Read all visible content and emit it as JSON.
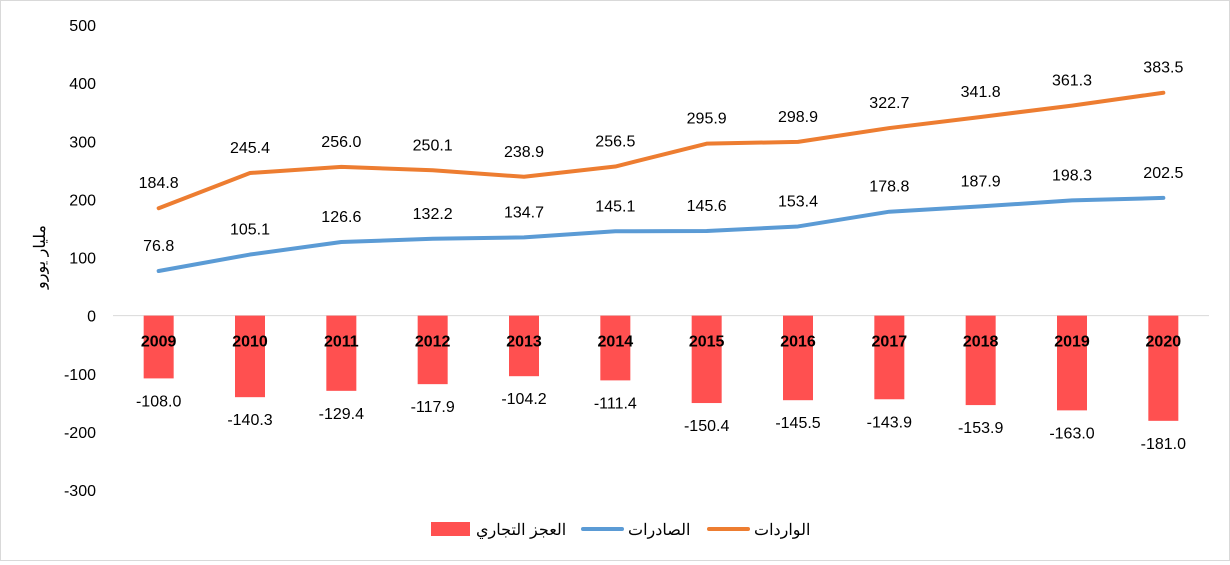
{
  "chart_data": {
    "type": "bar+line",
    "categories": [
      "2009",
      "2010",
      "2011",
      "2012",
      "2013",
      "2014",
      "2015",
      "2016",
      "2017",
      "2018",
      "2019",
      "2020"
    ],
    "ylabel": "مليار يورو",
    "ylim": [
      -300,
      500
    ],
    "yticks": [
      "500",
      "400",
      "300",
      "200",
      "100",
      "0",
      "-100",
      "-200",
      "-300"
    ],
    "grid": false,
    "legend_position": "bottom",
    "series": [
      {
        "name": "العجز التجاري",
        "kind": "bar",
        "color": "#ff5050",
        "values": [
          -108.0,
          -140.3,
          -129.4,
          -117.9,
          -104.2,
          -111.4,
          -150.4,
          -145.5,
          -143.9,
          -153.9,
          -163.0,
          -181.0
        ],
        "labels": [
          "-108.0",
          "-140.3",
          "-129.4",
          "-117.9",
          "-104.2",
          "-111.4",
          "-150.4",
          "-145.5",
          "-143.9",
          "-153.9",
          "-163.0",
          "-181.0"
        ]
      },
      {
        "name": "الصادرات",
        "kind": "line",
        "color": "#5b9bd5",
        "values": [
          76.8,
          105.1,
          126.6,
          132.2,
          134.7,
          145.1,
          145.6,
          153.4,
          178.8,
          187.9,
          198.3,
          202.5
        ],
        "labels": [
          "76.8",
          "105.1",
          "126.6",
          "132.2",
          "134.7",
          "145.1",
          "145.6",
          "153.4",
          "178.8",
          "187.9",
          "198.3",
          "202.5"
        ]
      },
      {
        "name": "الواردات",
        "kind": "line",
        "color": "#ed7d31",
        "values": [
          184.8,
          245.4,
          256.0,
          250.1,
          238.9,
          256.5,
          295.9,
          298.9,
          322.7,
          341.8,
          361.3,
          383.5
        ],
        "labels": [
          "184.8",
          "245.4",
          "256.0",
          "250.1",
          "238.9",
          "256.5",
          "295.9",
          "298.9",
          "322.7",
          "341.8",
          "361.3",
          "383.5"
        ]
      }
    ]
  }
}
